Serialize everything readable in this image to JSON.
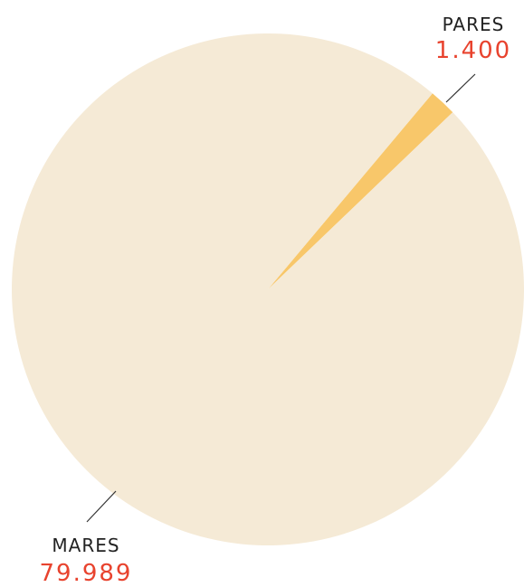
{
  "chart_data": {
    "type": "pie",
    "categories": [
      "PARES",
      "MARES"
    ],
    "values": [
      1400,
      79989
    ],
    "value_labels": [
      "1.400",
      "79.989"
    ],
    "colors": [
      "#f8c76a",
      "#f5ead6"
    ]
  }
}
